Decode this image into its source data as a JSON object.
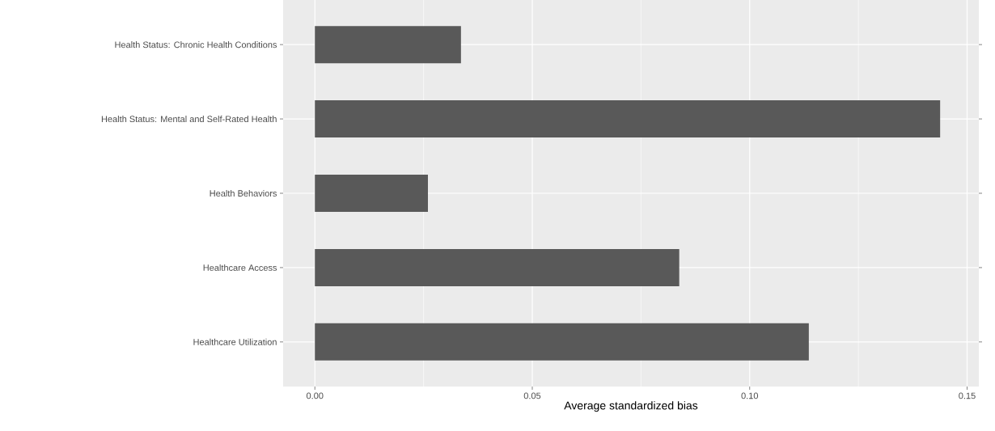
{
  "chart_data": {
    "type": "bar",
    "orientation": "horizontal",
    "categories": [
      "Health Status: Chronic Health Conditions",
      "Health Status: Mental and Self-Rated Health",
      "Health Behaviors",
      "Healthcare Access",
      "Healthcare Utilization"
    ],
    "values": [
      0.0336,
      0.1438,
      0.026,
      0.0838,
      0.1136
    ],
    "color": "#595959",
    "xlabel": "Average standardized bias",
    "xlim": [
      -0.0073,
      0.1527
    ],
    "xticks": [
      {
        "value": 0,
        "label": "0.00"
      },
      {
        "value": 0.05,
        "label": "0.05"
      },
      {
        "value": 0.1,
        "label": "0.10"
      },
      {
        "value": 0.15,
        "label": "0.15"
      }
    ],
    "grid": true
  }
}
